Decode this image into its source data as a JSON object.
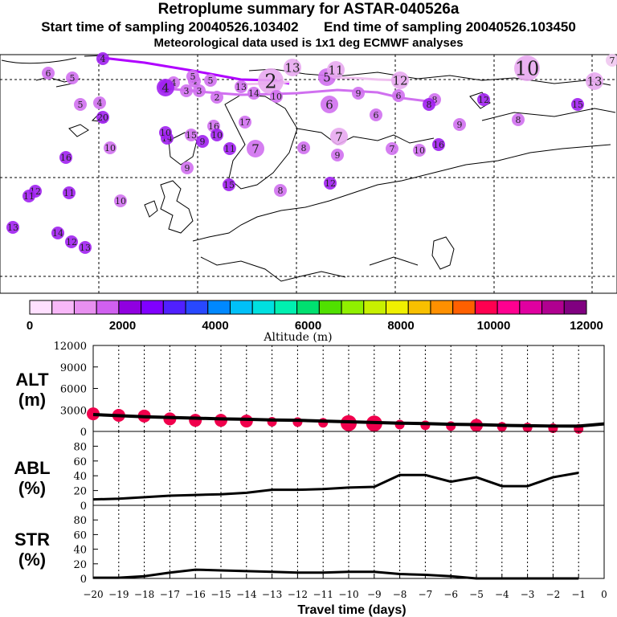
{
  "header": {
    "title": "Retroplume summary for ASTAR-040526a",
    "start_label": "Start time of sampling",
    "start_value": "20040526.103402",
    "end_label": "End time of sampling",
    "end_value": "20040526.103450",
    "met_line": "Meteorological data used is 1x1 deg ECMWF analyses"
  },
  "map": {
    "trajectory_color": "#b000ff",
    "labels": [
      {
        "t": "4",
        "c": "#a020f0",
        "s": 1
      },
      {
        "t": "4",
        "c": "#d070f0",
        "s": 1
      },
      {
        "t": "10",
        "c": "#e8a8f0",
        "s": 3
      },
      {
        "t": "7",
        "c": "#f0c8f0",
        "s": 1
      },
      {
        "t": "6",
        "c": "#d070f0",
        "s": 1
      },
      {
        "t": "5",
        "c": "#d070f0",
        "s": 1
      },
      {
        "t": "5",
        "c": "#d070f0",
        "s": 1
      },
      {
        "t": "4",
        "c": "#d070f0",
        "s": 1
      },
      {
        "t": "13",
        "c": "#e8a8f0",
        "s": 2
      },
      {
        "t": "5",
        "c": "#d070f0",
        "s": 2
      },
      {
        "t": "11",
        "c": "#e8a8f0",
        "s": 2
      },
      {
        "t": "12",
        "c": "#e8a8f0",
        "s": 2
      },
      {
        "t": "13",
        "c": "#e8a8f0",
        "s": 2
      },
      {
        "t": "4",
        "c": "#a020f0",
        "s": 2
      },
      {
        "t": "4",
        "c": "#d070f0",
        "s": 1
      },
      {
        "t": "3",
        "c": "#d070f0",
        "s": 1
      },
      {
        "t": "5",
        "c": "#d070f0",
        "s": 1
      },
      {
        "t": "13",
        "c": "#d070f0",
        "s": 1
      },
      {
        "t": "2",
        "c": "#e8a8f0",
        "s": 3
      },
      {
        "t": "9",
        "c": "#d070f0",
        "s": 1
      },
      {
        "t": "6",
        "c": "#d070f0",
        "s": 1
      },
      {
        "t": "8",
        "c": "#d070f0",
        "s": 1
      },
      {
        "t": "8",
        "c": "#a020f0",
        "s": 1
      },
      {
        "t": "3",
        "c": "#d070f0",
        "s": 1
      },
      {
        "t": "2",
        "c": "#d070f0",
        "s": 1
      },
      {
        "t": "14",
        "c": "#d070f0",
        "s": 1
      },
      {
        "t": "10",
        "c": "#d070f0",
        "s": 1
      },
      {
        "t": "12",
        "c": "#a020f0",
        "s": 1
      },
      {
        "t": "15",
        "c": "#a020f0",
        "s": 1
      },
      {
        "t": "5",
        "c": "#d070f0",
        "s": 1
      },
      {
        "t": "4",
        "c": "#a020f0",
        "s": 1
      },
      {
        "t": "20",
        "c": "#a020f0",
        "s": 1
      },
      {
        "t": "6",
        "c": "#d070f0",
        "s": 2
      },
      {
        "t": "6",
        "c": "#d070f0",
        "s": 1
      },
      {
        "t": "7",
        "c": "#e8a8f0",
        "s": 2
      },
      {
        "t": "8",
        "c": "#d070f0",
        "s": 1
      },
      {
        "t": "9",
        "c": "#d070f0",
        "s": 1
      },
      {
        "t": "15",
        "c": "#d070f0",
        "s": 1
      },
      {
        "t": "16",
        "c": "#d070f0",
        "s": 1
      },
      {
        "t": "17",
        "c": "#d070f0",
        "s": 1
      },
      {
        "t": "14",
        "c": "#a020f0",
        "s": 1
      },
      {
        "t": "16",
        "c": "#a020f0",
        "s": 1
      },
      {
        "t": "10",
        "c": "#d070f0",
        "s": 1
      },
      {
        "t": "13",
        "c": "#a020f0",
        "s": 1
      },
      {
        "t": "12",
        "c": "#a020f0",
        "s": 1
      },
      {
        "t": "11",
        "c": "#a020f0",
        "s": 1
      },
      {
        "t": "7",
        "c": "#d070f0",
        "s": 2
      },
      {
        "t": "8",
        "c": "#d070f0",
        "s": 1
      },
      {
        "t": "9",
        "c": "#d070f0",
        "s": 1
      },
      {
        "t": "7",
        "c": "#d070f0",
        "s": 1
      },
      {
        "t": "10",
        "c": "#d070f0",
        "s": 1
      },
      {
        "t": "16",
        "c": "#a020f0",
        "s": 1
      },
      {
        "t": "10",
        "c": "#a020f0",
        "s": 1
      },
      {
        "t": "9",
        "c": "#a020f0",
        "s": 1
      },
      {
        "t": "10",
        "c": "#a020f0",
        "s": 1
      },
      {
        "t": "9",
        "c": "#d070f0",
        "s": 1
      },
      {
        "t": "8",
        "c": "#d070f0",
        "s": 1
      },
      {
        "t": "12",
        "c": "#a020f0",
        "s": 1
      },
      {
        "t": "11",
        "c": "#a020f0",
        "s": 1
      },
      {
        "t": "10",
        "c": "#d070f0",
        "s": 1
      },
      {
        "t": "11",
        "c": "#a020f0",
        "s": 1
      },
      {
        "t": "15",
        "c": "#a020f0",
        "s": 1
      },
      {
        "t": "14",
        "c": "#a020f0",
        "s": 1
      },
      {
        "t": "12",
        "c": "#a020f0",
        "s": 1
      },
      {
        "t": "13",
        "c": "#a020f0",
        "s": 1
      }
    ]
  },
  "colorbar": {
    "label": "Altitude (m)",
    "tick_labels": [
      "0",
      "2000",
      "4000",
      "6000",
      "8000",
      "10000",
      "12000"
    ],
    "colors": [
      "#ffe0ff",
      "#f8b8f8",
      "#e890f0",
      "#d060f0",
      "#9000e0",
      "#8000ff",
      "#5020ff",
      "#2848ff",
      "#0088ff",
      "#00c0f8",
      "#00e0e0",
      "#00f0b0",
      "#00e070",
      "#50e000",
      "#90f000",
      "#c8f000",
      "#f0f000",
      "#f8c000",
      "#ff9000",
      "#ff6000",
      "#ff0050",
      "#ff0090",
      "#e000a0",
      "#b00090",
      "#800080"
    ]
  },
  "chart_data": [
    {
      "type": "scatter",
      "name": "ALT",
      "ylabel": "ALT (m)",
      "label_line1": "ALT",
      "label_line2": "(m)",
      "ylim": [
        0,
        12000
      ],
      "yticks": [
        "0",
        "3000",
        "6000",
        "9000",
        "12000"
      ],
      "x": [
        -20,
        -19,
        -18,
        -17,
        -16,
        -15,
        -14,
        -13,
        -12,
        -11,
        -10,
        -9,
        -8,
        -7,
        -6,
        -5,
        -4,
        -3,
        -2,
        -1,
        0
      ],
      "line": [
        2350,
        2200,
        2050,
        1950,
        1850,
        1750,
        1700,
        1600,
        1550,
        1450,
        1350,
        1250,
        1150,
        1100,
        1000,
        950,
        850,
        800,
        750,
        750,
        1050
      ],
      "points": [
        2450,
        2250,
        2150,
        1750,
        1550,
        1550,
        1450,
        1350,
        1300,
        1200,
        1150,
        1100,
        950,
        850,
        750,
        850,
        650,
        550,
        450,
        350
      ],
      "point_size": [
        3,
        3,
        3,
        3,
        3,
        3,
        3,
        2,
        2,
        2,
        4,
        4,
        2,
        2,
        2,
        3,
        2,
        2,
        2,
        2
      ],
      "point_color": "#f0004c"
    },
    {
      "type": "line",
      "name": "ABL",
      "ylabel": "ABL (%)",
      "label_line1": "ABL",
      "label_line2": "(%)",
      "ylim": [
        0,
        100
      ],
      "yticks": [
        "0",
        "20",
        "40",
        "60",
        "80"
      ],
      "x": [
        -20,
        -19,
        -18,
        -17,
        -16,
        -15,
        -14,
        -13,
        -12,
        -11,
        -10,
        -9,
        -8,
        -7,
        -6,
        -5,
        -4,
        -3,
        -2,
        -1
      ],
      "values": [
        8,
        9,
        11,
        13,
        14,
        15,
        17,
        21,
        21,
        22,
        24,
        25,
        41,
        41,
        32,
        38,
        26,
        26,
        38,
        44
      ]
    },
    {
      "type": "line",
      "name": "STR",
      "ylabel": "STR (%)",
      "label_line1": "STR",
      "label_line2": "(%)",
      "ylim": [
        0,
        100
      ],
      "yticks": [
        "0",
        "20",
        "40",
        "60",
        "80"
      ],
      "x": [
        -20,
        -19,
        -18,
        -17,
        -16,
        -15,
        -14,
        -13,
        -12,
        -11,
        -10,
        -9,
        -8,
        -7,
        -6,
        -5,
        -4,
        -3,
        -2,
        -1
      ],
      "values": [
        1,
        1,
        3,
        8,
        12,
        11,
        10,
        9,
        8,
        8,
        9,
        9,
        6,
        5,
        3,
        0,
        0,
        0,
        0,
        0
      ],
      "xlabel": "Travel time (days)",
      "xticks": [
        "−20",
        "−19",
        "−18",
        "−17",
        "−16",
        "−15",
        "−14",
        "−13",
        "−12",
        "−11",
        "−10",
        "−9",
        "−8",
        "−7",
        "−6",
        "−5",
        "−4",
        "−3",
        "−2",
        "−1",
        "0"
      ]
    }
  ]
}
